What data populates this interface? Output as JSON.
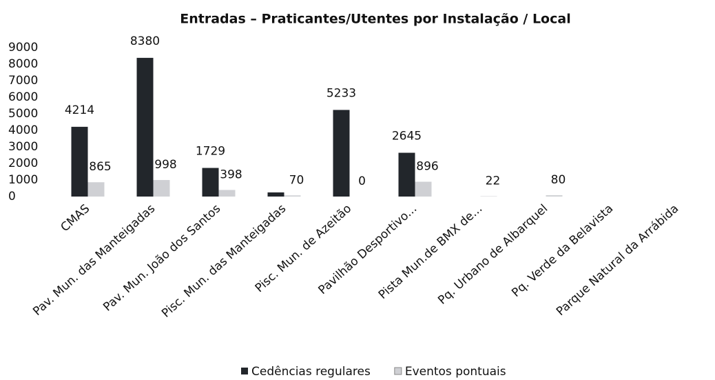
{
  "chart_data": {
    "type": "bar",
    "title": "Entradas – Praticantes/Utentes por Instalação / Local",
    "categories": [
      "CMAS",
      "Pav. Mun. das Manteigadas",
      "Pav. Mun. João dos Santos",
      "Pisc. Mun. das Manteigadas",
      "Pisc. Mun. de Azeitão",
      "Pavilhão Desportivo...",
      "Pista Mun.de BMX de...",
      "Pq. Urbano de Albarquel",
      "Pq. Verde da Belavista",
      "Parque Natural da Arrábida"
    ],
    "series": [
      {
        "name": "Cedências regulares",
        "color": "#22262b",
        "values": [
          4214,
          8380,
          1729,
          250,
          5233,
          2645,
          null,
          null,
          null,
          null
        ],
        "value_labels": [
          "4214",
          "8380",
          "1729",
          null,
          "5233",
          "2645",
          null,
          null,
          null,
          null
        ]
      },
      {
        "name": "Eventos pontuais",
        "color": "#cfd0d4",
        "values": [
          865,
          998,
          398,
          70,
          0,
          896,
          22,
          80,
          null,
          null
        ],
        "value_labels": [
          "865",
          "998",
          "398",
          "70",
          "0",
          "896",
          "22",
          "80",
          null,
          null
        ]
      }
    ],
    "ylim": [
      0,
      9000
    ],
    "yticks": [
      0,
      1000,
      2000,
      3000,
      4000,
      5000,
      6000,
      7000,
      8000,
      9000
    ],
    "grid": false,
    "legend": "bottom"
  }
}
